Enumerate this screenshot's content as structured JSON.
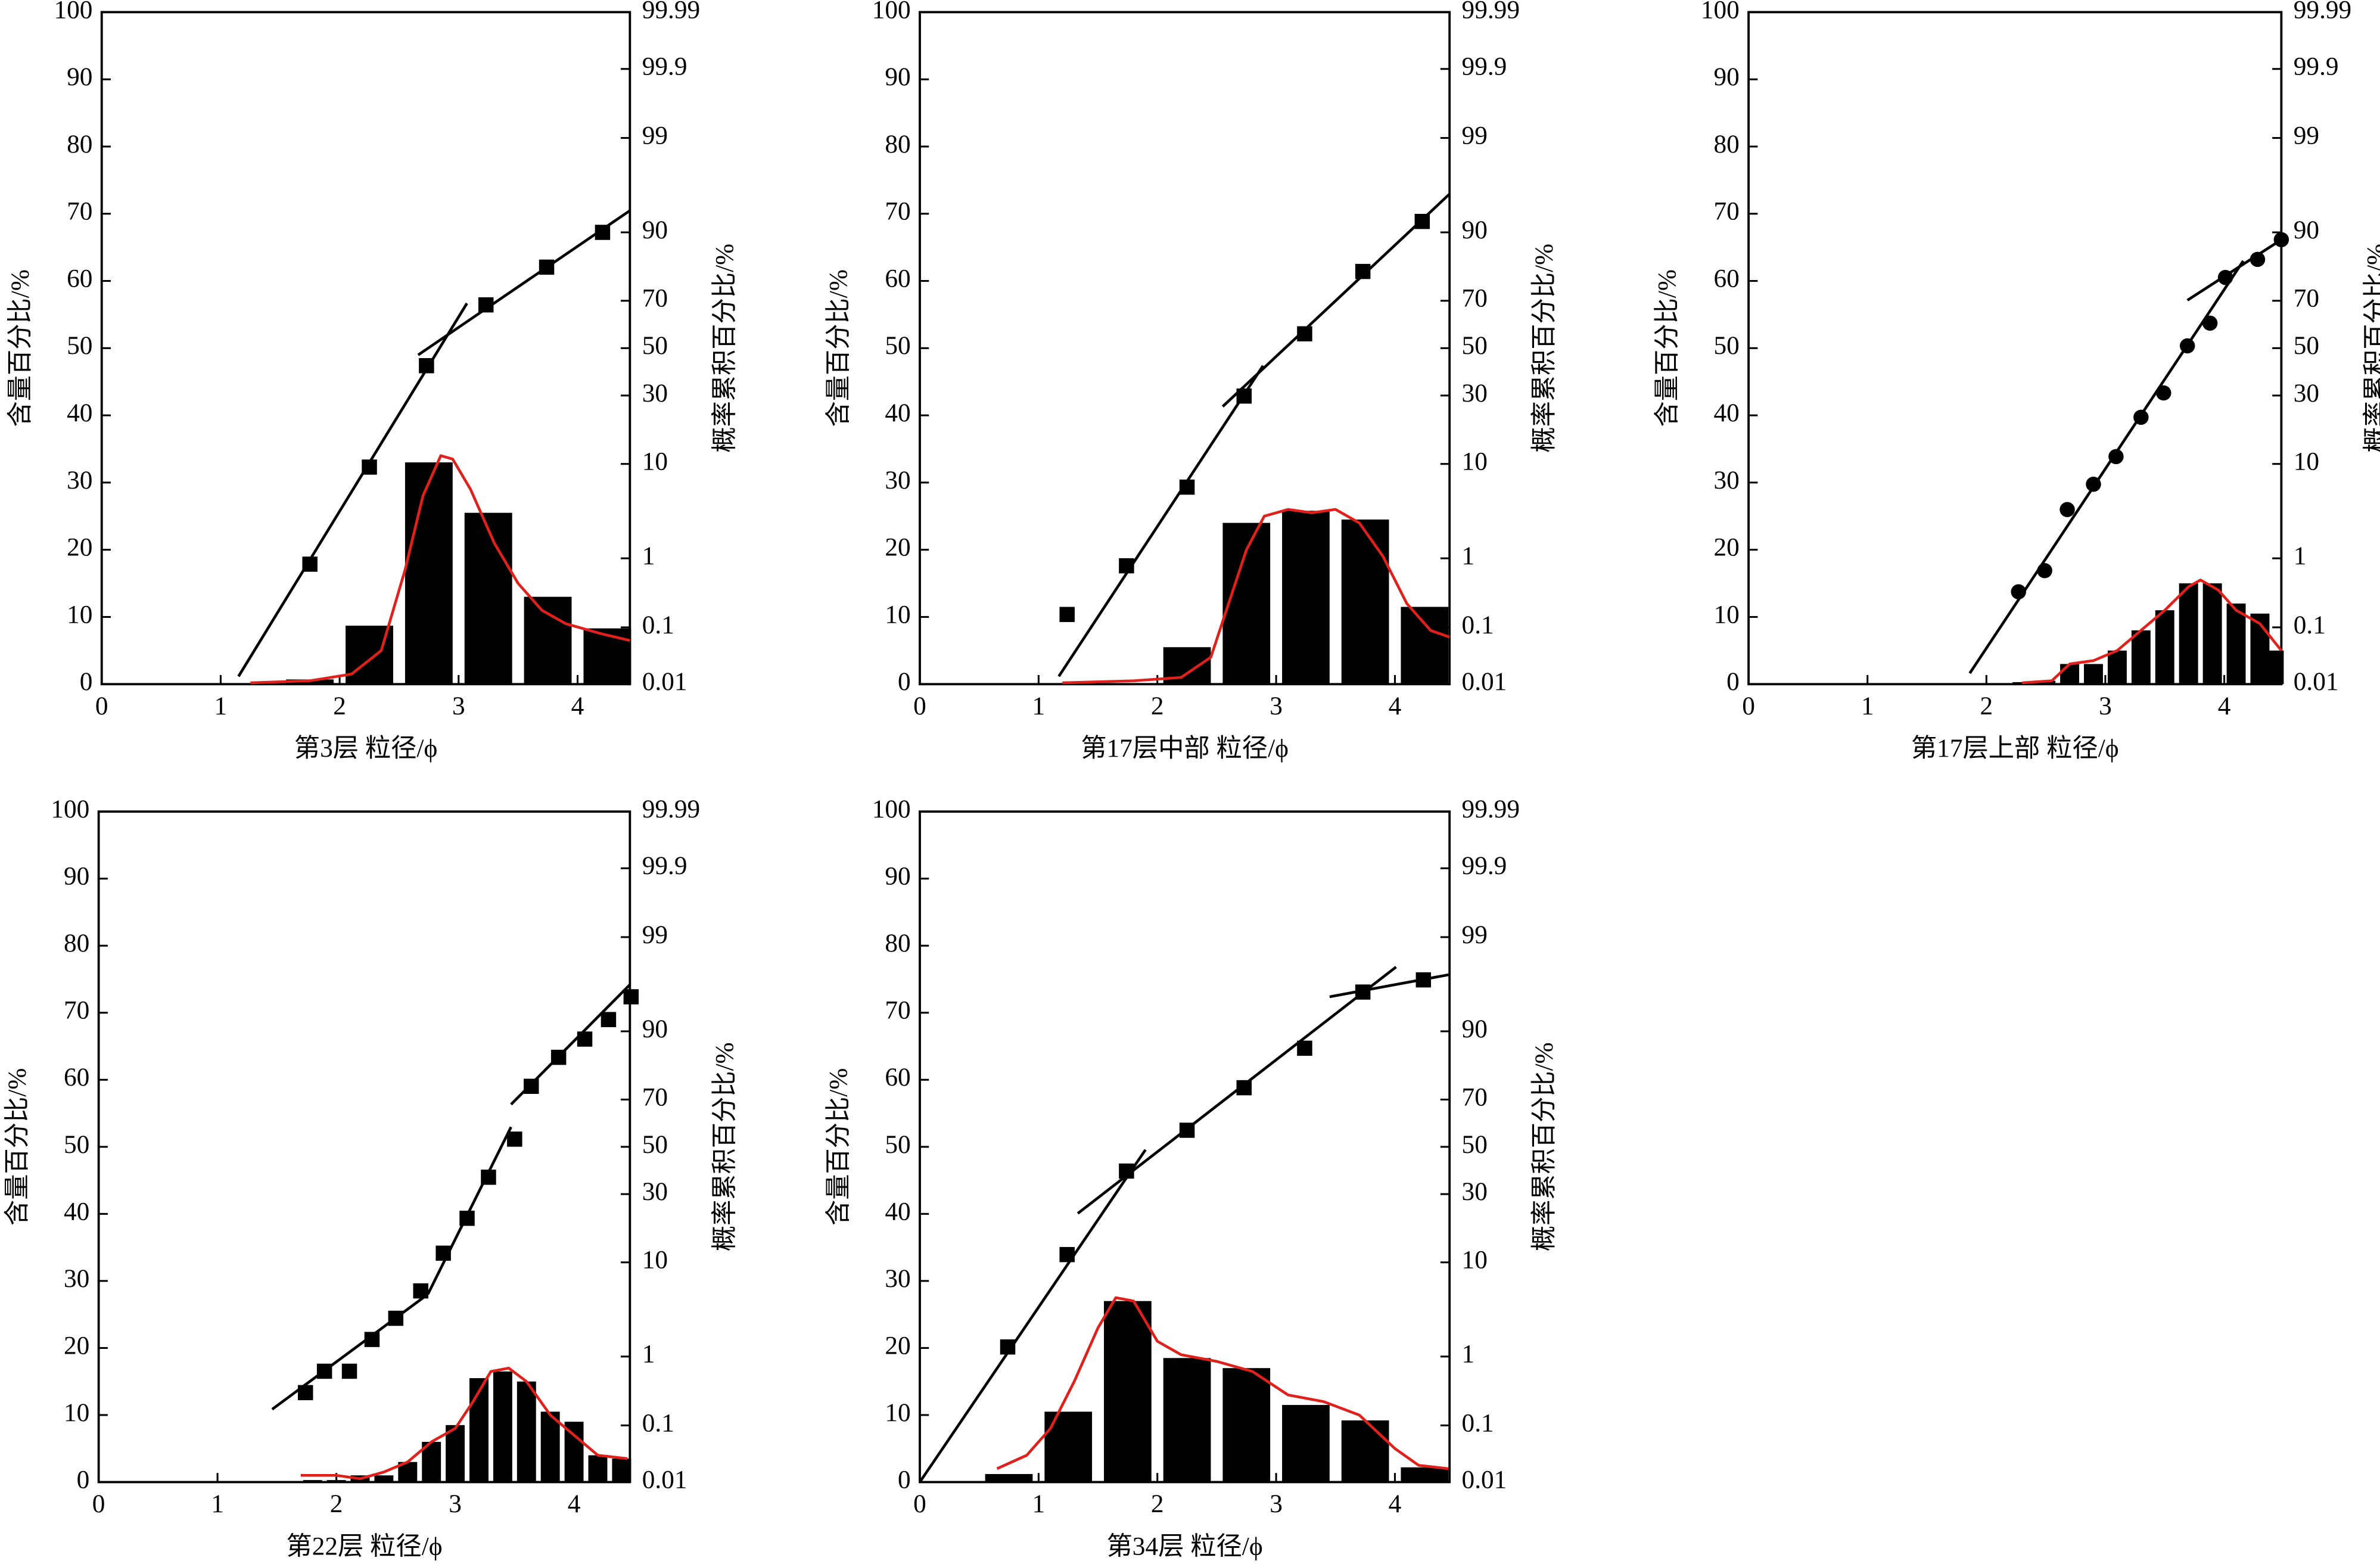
{
  "chart_data": [
    {
      "type": "combo",
      "xlabel": "第3层  粒径/ϕ",
      "ylabel": "含量百分比/%",
      "y2label": "概率累积百分比/%",
      "xlim": [
        0,
        4.44
      ],
      "ylim": [
        0,
        100
      ],
      "y2lim": [
        0.01,
        99.99
      ],
      "y2scale": "probability",
      "xticks": [
        0,
        1,
        2,
        3,
        4
      ],
      "yticks": [
        0,
        10,
        20,
        30,
        40,
        50,
        60,
        70,
        80,
        90,
        100
      ],
      "y2ticks": [
        0.01,
        0.1,
        1,
        10,
        30,
        50,
        70,
        90,
        99,
        99.9,
        99.99
      ],
      "bars": {
        "color": "#000000",
        "x": [
          1.75,
          2.25,
          2.75,
          3.25,
          3.75,
          4.25
        ],
        "values": [
          0.7,
          8.7,
          33,
          25.5,
          13,
          8.3
        ]
      },
      "curve": {
        "color": "#e0201b",
        "x": [
          1.25,
          1.75,
          2.1,
          2.35,
          2.55,
          2.7,
          2.85,
          2.95,
          3.1,
          3.3,
          3.5,
          3.7,
          3.9,
          4.2,
          4.44
        ],
        "values": [
          0.2,
          0.5,
          1.5,
          5,
          17,
          28,
          34,
          33.5,
          29,
          21,
          15,
          11,
          9,
          7.5,
          6.5
        ]
      },
      "points": {
        "marker": "square",
        "axis": "y2",
        "color": "#000000",
        "x": [
          1.75,
          2.25,
          2.73,
          3.23,
          3.74,
          4.21
        ],
        "values": [
          0.84,
          9.4,
          42.3,
          68.4,
          81.5,
          90.0
        ]
      },
      "fits": [
        {
          "axis": "y2",
          "x": [
            1.15,
            3.07
          ],
          "values": [
            0.014,
            69.0
          ]
        },
        {
          "axis": "y2",
          "x": [
            2.66,
            4.44
          ],
          "values": [
            47,
            93.6
          ]
        }
      ]
    },
    {
      "type": "combo",
      "xlabel": "第17层中部  粒径/ϕ",
      "ylabel": "含量百分比/%",
      "y2label": "概率累积百分比/%",
      "xlim": [
        0,
        4.46
      ],
      "ylim": [
        0,
        100
      ],
      "y2lim": [
        0.01,
        99.99
      ],
      "y2scale": "probability",
      "xticks": [
        0,
        1,
        2,
        3,
        4
      ],
      "yticks": [
        0,
        10,
        20,
        30,
        40,
        50,
        60,
        70,
        80,
        90,
        100
      ],
      "y2ticks": [
        0.01,
        0.1,
        1,
        10,
        30,
        50,
        70,
        90,
        99,
        99.9,
        99.99
      ],
      "bars": {
        "color": "#000000",
        "x": [
          2.25,
          2.75,
          3.25,
          3.75,
          4.25
        ],
        "values": [
          5.5,
          24,
          25.8,
          24.5,
          11.5
        ]
      },
      "curve": {
        "color": "#e0201b",
        "x": [
          1.2,
          1.8,
          2.2,
          2.45,
          2.6,
          2.75,
          2.9,
          3.1,
          3.3,
          3.5,
          3.7,
          3.9,
          4.1,
          4.3,
          4.46
        ],
        "values": [
          0.2,
          0.5,
          1,
          4,
          12,
          20,
          25,
          26,
          25.5,
          26,
          24,
          19,
          12,
          8,
          7
        ]
      },
      "points": {
        "marker": "square",
        "axis": "y2",
        "color": "#000000",
        "x": [
          1.24,
          1.74,
          2.25,
          2.73,
          3.24,
          3.73,
          4.23
        ],
        "values": [
          0.16,
          0.8,
          6.2,
          29.8,
          56.3,
          80.2,
          91.96
        ]
      },
      "fits": [
        {
          "axis": "y2",
          "x": [
            1.17,
            2.89
          ],
          "values": [
            0.014,
            42.3
          ]
        },
        {
          "axis": "y2",
          "x": [
            2.55,
            4.46
          ],
          "values": [
            25.9,
            95.6
          ]
        }
      ]
    },
    {
      "type": "combo",
      "xlabel": "第17层上部  粒径/ϕ",
      "ylabel": "含量百分比/%",
      "y2label": "概率累积百分比/%",
      "xlim": [
        0,
        4.48
      ],
      "ylim": [
        0,
        100
      ],
      "y2lim": [
        0.01,
        99.99
      ],
      "y2scale": "probability",
      "xticks": [
        0,
        1,
        2,
        3,
        4
      ],
      "yticks": [
        0,
        10,
        20,
        30,
        40,
        50,
        60,
        70,
        80,
        90,
        100
      ],
      "y2ticks": [
        0.01,
        0.1,
        1,
        10,
        30,
        50,
        70,
        90,
        99,
        99.9,
        99.99
      ],
      "bars": {
        "color": "#000000",
        "x": [
          2.3,
          2.5,
          2.7,
          2.9,
          3.1,
          3.3,
          3.5,
          3.7,
          3.9,
          4.1,
          4.3,
          4.42
        ],
        "values": [
          0.3,
          0.5,
          3,
          3,
          5,
          8,
          11,
          15,
          15,
          12,
          10.5,
          5
        ]
      },
      "curve": {
        "color": "#e0201b",
        "x": [
          2.3,
          2.55,
          2.7,
          2.9,
          3.1,
          3.3,
          3.5,
          3.7,
          3.8,
          3.95,
          4.1,
          4.3,
          4.48
        ],
        "values": [
          0.2,
          0.5,
          3,
          3.5,
          5,
          8,
          11,
          14.5,
          15.5,
          14,
          11,
          9,
          5
        ]
      },
      "points": {
        "marker": "circle",
        "axis": "y2",
        "color": "#000000",
        "x": [
          2.27,
          2.49,
          2.68,
          2.9,
          3.09,
          3.3,
          3.49,
          3.69,
          3.88,
          4.01,
          4.28,
          4.48
        ],
        "values": [
          0.35,
          0.69,
          3.7,
          6.6,
          11.5,
          22.2,
          31.0,
          51.0,
          60.9,
          78.3,
          83.7,
          88.5
        ]
      },
      "fits": [
        {
          "axis": "y2",
          "x": [
            1.86,
            4.16
          ],
          "values": [
            0.016,
            83.3
          ]
        },
        {
          "axis": "y2",
          "x": [
            3.69,
            4.48
          ],
          "values": [
            70.2,
            88.5
          ]
        }
      ]
    },
    {
      "type": "combo",
      "xlabel": "第22层  粒径/ϕ",
      "ylabel": "含量百分比/%",
      "y2label": "概率累积百分比/%",
      "xlim": [
        0,
        4.47
      ],
      "ylim": [
        0,
        100
      ],
      "y2lim": [
        0.01,
        99.99
      ],
      "y2scale": "probability",
      "xticks": [
        0,
        1,
        2,
        3,
        4
      ],
      "yticks": [
        0,
        10,
        20,
        30,
        40,
        50,
        60,
        70,
        80,
        90,
        100
      ],
      "y2ticks": [
        0.01,
        0.1,
        1,
        10,
        30,
        50,
        70,
        90,
        99,
        99.9,
        99.99
      ],
      "bars": {
        "color": "#000000",
        "x": [
          1.8,
          2.0,
          2.2,
          2.4,
          2.6,
          2.8,
          3.0,
          3.2,
          3.4,
          3.6,
          3.8,
          4.0,
          4.2,
          4.4
        ],
        "values": [
          0.3,
          0.3,
          1,
          1,
          3,
          6,
          8.5,
          15.5,
          16.5,
          15,
          10.5,
          9,
          4,
          3.5
        ]
      },
      "curve": {
        "color": "#e0201b",
        "x": [
          1.7,
          2.0,
          2.2,
          2.4,
          2.6,
          2.8,
          3.0,
          3.15,
          3.3,
          3.45,
          3.6,
          3.8,
          4.0,
          4.2,
          4.45
        ],
        "values": [
          1,
          1,
          0.5,
          1.5,
          3,
          6,
          8,
          12,
          16.5,
          17,
          15,
          10,
          7,
          4,
          3.5
        ]
      },
      "points": {
        "marker": "square",
        "axis": "y2",
        "color": "#000000",
        "x": [
          1.74,
          1.9,
          2.11,
          2.3,
          2.5,
          2.71,
          2.9,
          3.1,
          3.28,
          3.5,
          3.64,
          3.87,
          4.09,
          4.29,
          4.48
        ],
        "values": [
          0.32,
          0.64,
          0.64,
          1.63,
          2.86,
          5.5,
          11.9,
          21.4,
          36.8,
          53.4,
          74.9,
          83.96,
          88.4,
          92.1,
          95.2
        ]
      },
      "fits": [
        {
          "axis": "y2",
          "x": [
            1.46,
            2.77
          ],
          "values": [
            0.18,
            5.1
          ]
        },
        {
          "axis": "y2",
          "x": [
            2.77,
            3.47
          ],
          "values": [
            5.1,
            58.7
          ]
        },
        {
          "axis": "y2",
          "x": [
            3.47,
            4.47
          ],
          "values": [
            68.1,
            96.4
          ]
        }
      ]
    },
    {
      "type": "combo",
      "xlabel": "第34层  粒径/ϕ",
      "ylabel": "含量百分比/%",
      "y2label": "概率累积百分比/%",
      "xlim": [
        0,
        4.46
      ],
      "ylim": [
        0,
        100
      ],
      "y2lim": [
        0.01,
        99.99
      ],
      "y2scale": "probability",
      "xticks": [
        0,
        1,
        2,
        3,
        4
      ],
      "yticks": [
        0,
        10,
        20,
        30,
        40,
        50,
        60,
        70,
        80,
        90,
        100
      ],
      "y2ticks": [
        0.01,
        0.1,
        1,
        10,
        30,
        50,
        70,
        90,
        99,
        99.9,
        99.99
      ],
      "bars": {
        "color": "#000000",
        "x": [
          0.75,
          1.25,
          1.75,
          2.25,
          2.75,
          3.25,
          3.75,
          4.25
        ],
        "values": [
          1.2,
          10.5,
          27,
          18.5,
          17,
          11.5,
          9.2,
          2.2
        ]
      },
      "curve": {
        "color": "#e0201b",
        "x": [
          0.65,
          0.9,
          1.1,
          1.3,
          1.5,
          1.65,
          1.8,
          2.0,
          2.2,
          2.5,
          2.8,
          3.1,
          3.4,
          3.7,
          4.0,
          4.2,
          4.45
        ],
        "values": [
          2,
          4,
          8,
          15,
          23,
          27.5,
          27,
          21,
          19,
          18,
          16.5,
          13,
          12,
          10,
          5,
          2.5,
          2
        ]
      },
      "points": {
        "marker": "square",
        "axis": "y2",
        "color": "#000000",
        "x": [
          0.74,
          1.24,
          1.74,
          2.25,
          2.73,
          3.24,
          3.73,
          4.24
        ],
        "values": [
          1.32,
          11.6,
          39.4,
          57.3,
          74.4,
          86.3,
          95.7,
          96.8
        ]
      },
      "fits": [
        {
          "axis": "y2",
          "x": [
            0,
            1.9
          ],
          "values": [
            0.01,
            48.7
          ]
        },
        {
          "axis": "y2",
          "x": [
            1.33,
            4.01
          ],
          "values": [
            23.0,
            97.7
          ]
        },
        {
          "axis": "y2",
          "x": [
            3.45,
            4.46
          ],
          "values": [
            95.2,
            97.2
          ]
        }
      ]
    }
  ]
}
